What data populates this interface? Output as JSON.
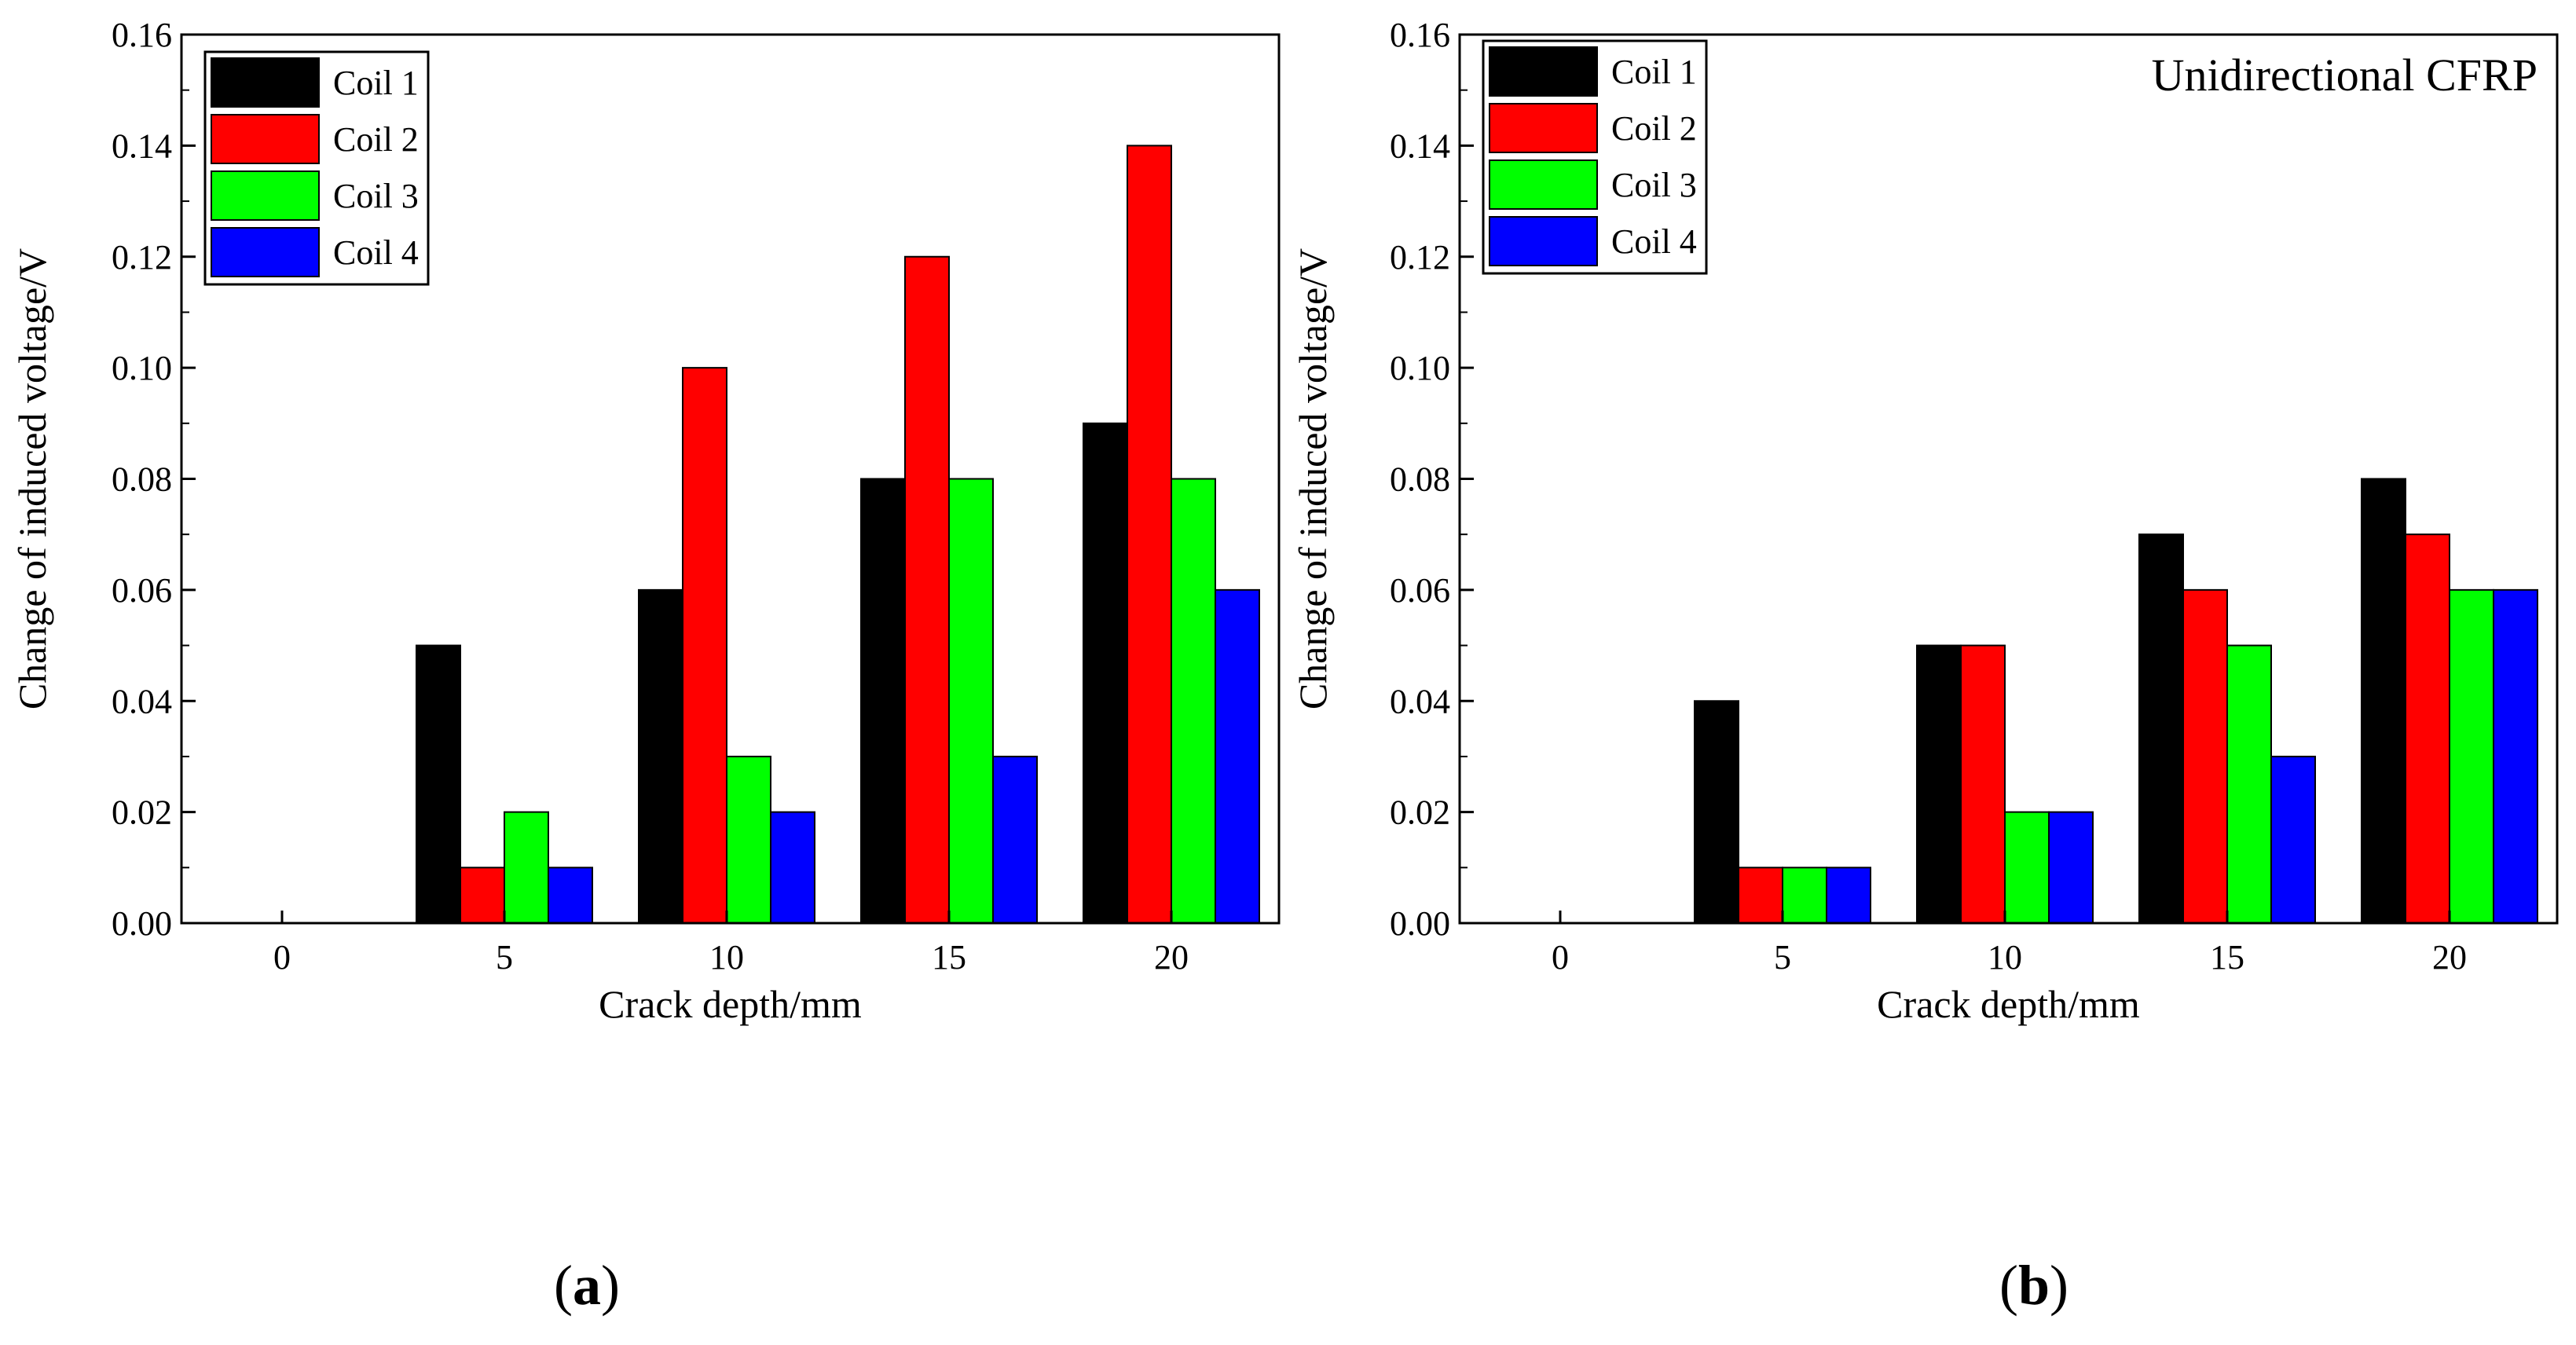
{
  "figure": {
    "panels": [
      {
        "label_open": "(",
        "label_letter": "a",
        "label_close": ")"
      },
      {
        "label_open": "(",
        "label_letter": "b",
        "label_close": ")"
      }
    ]
  },
  "chart_data": [
    {
      "type": "bar",
      "title": "",
      "xlabel": "Crack depth/mm",
      "ylabel": "Change of induced voltage/V",
      "categories": [
        "0",
        "5",
        "10",
        "15",
        "20"
      ],
      "ylim": [
        0,
        0.16
      ],
      "yticks": [
        "0.00",
        "0.02",
        "0.04",
        "0.06",
        "0.08",
        "0.10",
        "0.12",
        "0.14",
        "0.16"
      ],
      "yticks_values": [
        0,
        0.02,
        0.04,
        0.06,
        0.08,
        0.1,
        0.12,
        0.14,
        0.16
      ],
      "legend_position": "top-left",
      "annotation": "",
      "series": [
        {
          "name": "Coil 1",
          "color": "#000000",
          "values": [
            0,
            0.05,
            0.06,
            0.08,
            0.09
          ]
        },
        {
          "name": "Coil 2",
          "color": "#ff0000",
          "values": [
            0,
            0.01,
            0.1,
            0.12,
            0.14
          ]
        },
        {
          "name": "Coil 3",
          "color": "#00ff00",
          "values": [
            0,
            0.02,
            0.03,
            0.08,
            0.08
          ]
        },
        {
          "name": "Coil 4",
          "color": "#0000ff",
          "values": [
            0,
            0.01,
            0.02,
            0.03,
            0.06
          ]
        }
      ]
    },
    {
      "type": "bar",
      "title": "",
      "xlabel": "Crack depth/mm",
      "ylabel": "Change of induced voltage/V",
      "categories": [
        "0",
        "5",
        "10",
        "15",
        "20"
      ],
      "ylim": [
        0,
        0.16
      ],
      "yticks": [
        "0.00",
        "0.02",
        "0.04",
        "0.06",
        "0.08",
        "0.10",
        "0.12",
        "0.14",
        "0.16"
      ],
      "yticks_values": [
        0,
        0.02,
        0.04,
        0.06,
        0.08,
        0.1,
        0.12,
        0.14,
        0.16
      ],
      "legend_position": "top-left",
      "annotation": "Unidirectional CFRP",
      "series": [
        {
          "name": "Coil 1",
          "color": "#000000",
          "values": [
            0,
            0.04,
            0.05,
            0.07,
            0.08
          ]
        },
        {
          "name": "Coil 2",
          "color": "#ff0000",
          "values": [
            0,
            0.01,
            0.05,
            0.06,
            0.07
          ]
        },
        {
          "name": "Coil 3",
          "color": "#00ff00",
          "values": [
            0,
            0.01,
            0.02,
            0.05,
            0.06
          ]
        },
        {
          "name": "Coil 4",
          "color": "#0000ff",
          "values": [
            0,
            0.01,
            0.02,
            0.03,
            0.06
          ]
        }
      ]
    }
  ]
}
